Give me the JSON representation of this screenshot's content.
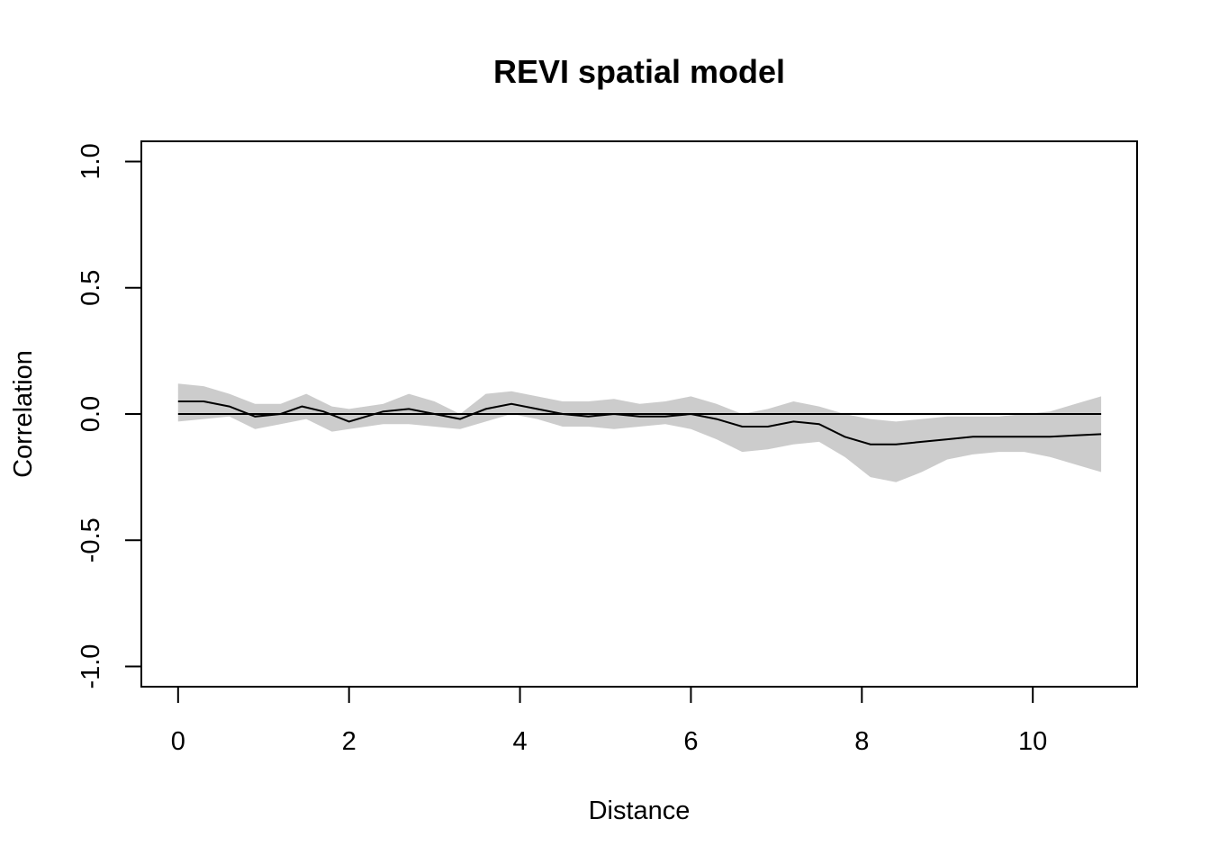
{
  "chart_data": {
    "type": "line",
    "title": "REVI spatial model",
    "xlabel": "Distance",
    "ylabel": "Correlation",
    "xlim": [
      -0.43,
      11.22
    ],
    "ylim": [
      -1.08,
      1.08
    ],
    "x_ticks": [
      0,
      2,
      4,
      6,
      8,
      10
    ],
    "y_ticks": [
      -1.0,
      -0.5,
      0.0,
      0.5,
      1.0
    ],
    "x_tick_labels": [
      "0",
      "2",
      "4",
      "6",
      "8",
      "10"
    ],
    "y_tick_labels": [
      "-1.0",
      "-0.5",
      "0.0",
      "0.5",
      "1.0"
    ],
    "grid": false,
    "legend": false,
    "colors": {
      "band": "#cccccc",
      "line": "#000000",
      "reference": "#000000"
    },
    "reference_line_y": 0.0,
    "reference_line_x_range": [
      0,
      10.8
    ],
    "series": [
      {
        "kind": "band",
        "x": [
          0,
          0.3,
          0.6,
          0.9,
          1.2,
          1.5,
          1.8,
          2.0,
          2.4,
          2.7,
          3.0,
          3.3,
          3.6,
          3.9,
          4.2,
          4.5,
          4.8,
          5.1,
          5.4,
          5.7,
          6.0,
          6.3,
          6.6,
          6.9,
          7.2,
          7.5,
          7.8,
          8.1,
          8.4,
          8.7,
          9.0,
          9.3,
          9.6,
          9.9,
          10.2,
          10.5,
          10.8
        ],
        "upper": [
          0.12,
          0.11,
          0.08,
          0.04,
          0.04,
          0.08,
          0.03,
          0.02,
          0.04,
          0.08,
          0.05,
          0.0,
          0.08,
          0.09,
          0.07,
          0.05,
          0.05,
          0.06,
          0.04,
          0.05,
          0.07,
          0.04,
          0.0,
          0.02,
          0.05,
          0.03,
          0.0,
          -0.02,
          -0.03,
          -0.02,
          -0.01,
          -0.01,
          -0.01,
          0.0,
          0.01,
          0.04,
          0.07
        ],
        "lower": [
          -0.03,
          -0.02,
          -0.01,
          -0.06,
          -0.04,
          -0.02,
          -0.07,
          -0.06,
          -0.04,
          -0.04,
          -0.05,
          -0.06,
          -0.03,
          0.0,
          -0.02,
          -0.05,
          -0.05,
          -0.06,
          -0.05,
          -0.04,
          -0.06,
          -0.1,
          -0.15,
          -0.14,
          -0.12,
          -0.11,
          -0.17,
          -0.25,
          -0.27,
          -0.23,
          -0.18,
          -0.16,
          -0.15,
          -0.15,
          -0.17,
          -0.2,
          -0.23
        ]
      },
      {
        "kind": "line",
        "x": [
          0,
          0.3,
          0.6,
          0.9,
          1.2,
          1.45,
          1.7,
          2.0,
          2.4,
          2.7,
          3.0,
          3.3,
          3.6,
          3.9,
          4.2,
          4.5,
          4.8,
          5.1,
          5.4,
          5.7,
          6.0,
          6.3,
          6.6,
          6.9,
          7.2,
          7.5,
          7.8,
          8.1,
          8.4,
          8.7,
          9.0,
          9.3,
          9.6,
          9.9,
          10.2,
          10.5,
          10.8
        ],
        "y": [
          0.05,
          0.05,
          0.03,
          -0.01,
          0.0,
          0.03,
          0.01,
          -0.03,
          0.01,
          0.02,
          0.0,
          -0.02,
          0.02,
          0.04,
          0.02,
          0.0,
          -0.01,
          0.0,
          -0.01,
          -0.01,
          0.0,
          -0.02,
          -0.05,
          -0.05,
          -0.03,
          -0.04,
          -0.09,
          -0.12,
          -0.12,
          -0.11,
          -0.1,
          -0.09,
          -0.09,
          -0.09,
          -0.09,
          -0.085,
          -0.08
        ]
      }
    ]
  }
}
